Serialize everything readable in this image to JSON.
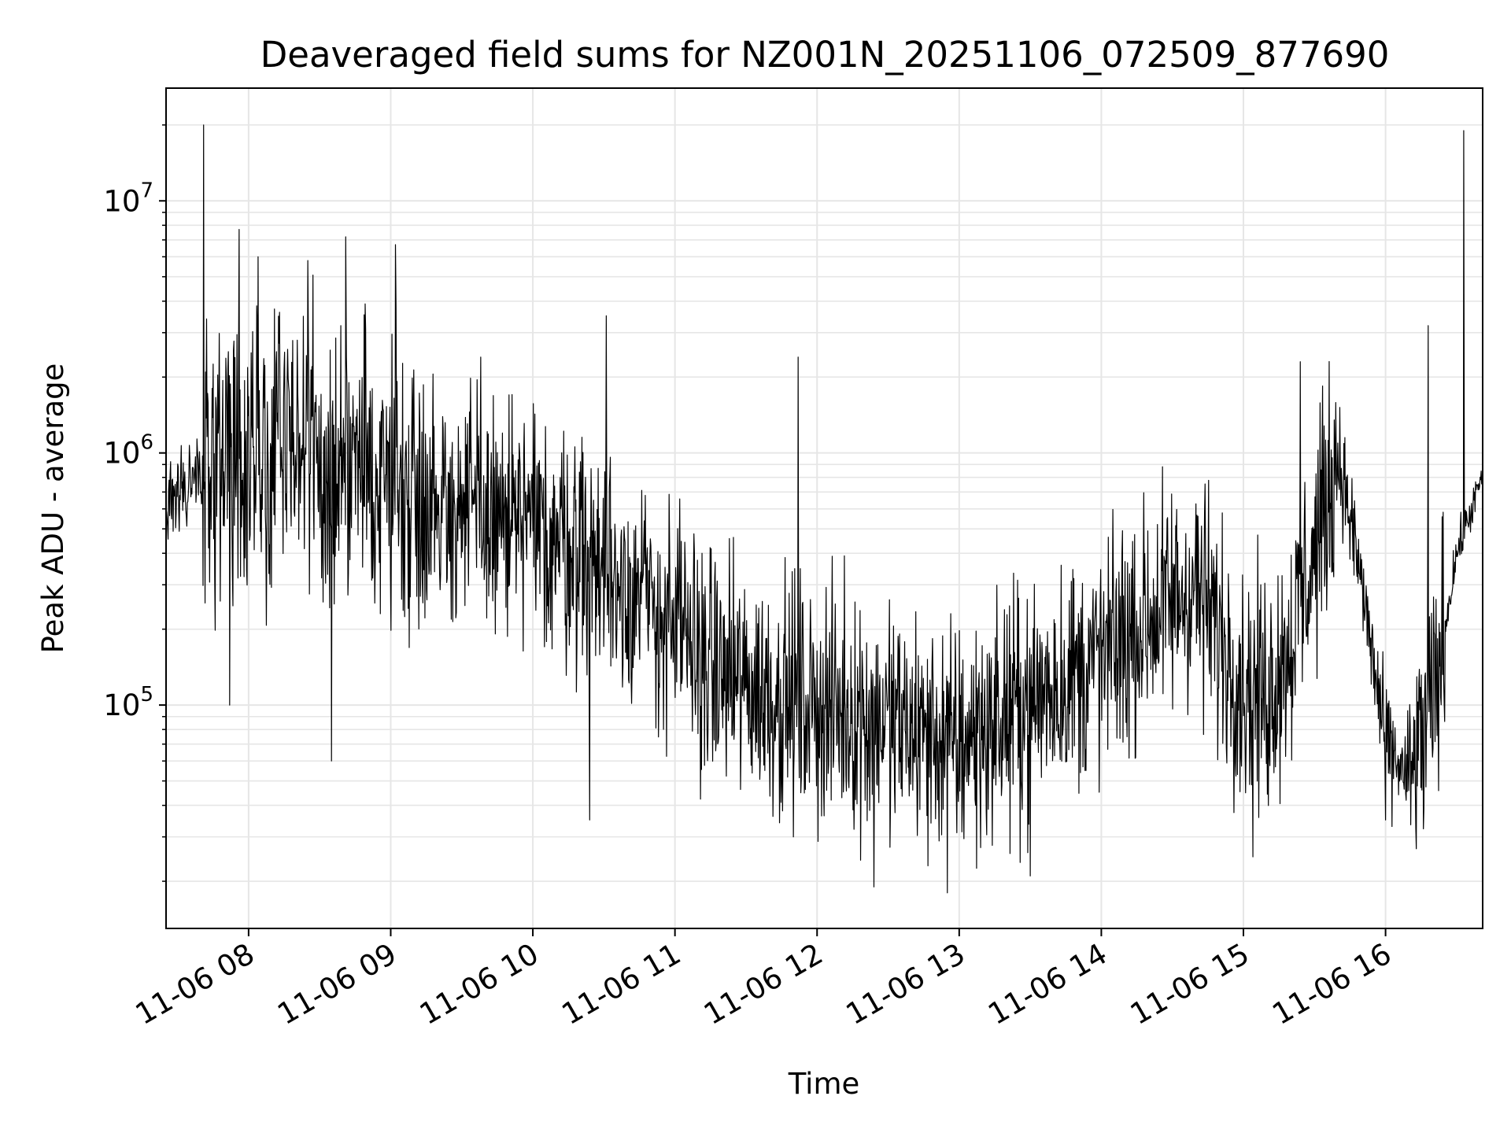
{
  "chart_data": {
    "type": "line",
    "title": "Deaveraged field sums for NZ001N_20251106_072509_877690",
    "xlabel": "Time",
    "ylabel": "Peak ADU - average",
    "yscale": "log",
    "xlim": [
      "2025-11-06T07:25:09",
      "2025-11-06T16:41:00"
    ],
    "ylim": [
      13000,
      28000000
    ],
    "grid": true,
    "x_tick_labels": [
      "11-06 08",
      "11-06 09",
      "11-06 10",
      "11-06 11",
      "11-06 12",
      "11-06 13",
      "11-06 14",
      "11-06 15",
      "11-06 16"
    ],
    "x_tick_times": [
      "2025-11-06T08:00:00",
      "2025-11-06T09:00:00",
      "2025-11-06T10:00:00",
      "2025-11-06T11:00:00",
      "2025-11-06T12:00:00",
      "2025-11-06T13:00:00",
      "2025-11-06T14:00:00",
      "2025-11-06T15:00:00",
      "2025-11-06T16:00:00"
    ],
    "y_ticks": [
      {
        "value": 100000,
        "base": "10",
        "exp": "5"
      },
      {
        "value": 1000000,
        "base": "10",
        "exp": "6"
      },
      {
        "value": 10000000,
        "base": "10",
        "exp": "7"
      }
    ],
    "line_color": "#000000",
    "series": [
      {
        "x": [
          "2025-11-06T07:25:09",
          "2025-11-06T07:40:00",
          "2025-11-06T08:00:00",
          "2025-11-06T08:20:00",
          "2025-11-06T08:40:00",
          "2025-11-06T09:00:00",
          "2025-11-06T09:20:00",
          "2025-11-06T09:40:00",
          "2025-11-06T10:00:00",
          "2025-11-06T10:20:00",
          "2025-11-06T10:40:00",
          "2025-11-06T11:00:00",
          "2025-11-06T11:20:00",
          "2025-11-06T11:40:00",
          "2025-11-06T12:00:00",
          "2025-11-06T12:20:00",
          "2025-11-06T12:40:00",
          "2025-11-06T13:00:00",
          "2025-11-06T13:20:00",
          "2025-11-06T13:40:00",
          "2025-11-06T14:00:00",
          "2025-11-06T14:20:00",
          "2025-11-06T14:40:00",
          "2025-11-06T15:00:00",
          "2025-11-06T15:10:00",
          "2025-11-06T15:20:00",
          "2025-11-06T15:30:00",
          "2025-11-06T15:40:00",
          "2025-11-06T15:50:00",
          "2025-11-06T16:00:00",
          "2025-11-06T16:10:00",
          "2025-11-06T16:20:00",
          "2025-11-06T16:30:00",
          "2025-11-06T16:41:00"
        ],
        "y": [
          600000,
          850000,
          1000000,
          1100000,
          900000,
          800000,
          650000,
          550000,
          500000,
          420000,
          300000,
          200000,
          130000,
          110000,
          100000,
          90000,
          80000,
          70000,
          90000,
          120000,
          150000,
          220000,
          300000,
          120000,
          110000,
          180000,
          400000,
          1000000,
          300000,
          70000,
          50000,
          100000,
          400000,
          800000
        ],
        "peaks": [
          {
            "x": "2025-11-06T07:41:00",
            "y": 20000000
          },
          {
            "x": "2025-11-06T07:56:00",
            "y": 7700000
          },
          {
            "x": "2025-11-06T08:04:00",
            "y": 6000000
          },
          {
            "x": "2025-11-06T08:25:00",
            "y": 5800000
          },
          {
            "x": "2025-11-06T08:41:00",
            "y": 7200000
          },
          {
            "x": "2025-11-06T09:02:00",
            "y": 6700000
          },
          {
            "x": "2025-11-06T09:38:00",
            "y": 2400000
          },
          {
            "x": "2025-11-06T10:31:00",
            "y": 3500000
          },
          {
            "x": "2025-11-06T11:52:00",
            "y": 2400000
          },
          {
            "x": "2025-11-06T15:24:00",
            "y": 2300000
          },
          {
            "x": "2025-11-06T16:18:00",
            "y": 3200000
          },
          {
            "x": "2025-11-06T16:33:00",
            "y": 19000000
          }
        ],
        "troughs": [
          {
            "x": "2025-11-06T07:52:00",
            "y": 100000
          },
          {
            "x": "2025-11-06T08:35:00",
            "y": 60000
          },
          {
            "x": "2025-11-06T10:24:00",
            "y": 35000
          },
          {
            "x": "2025-11-06T11:50:00",
            "y": 30000
          },
          {
            "x": "2025-11-06T12:24:00",
            "y": 19000
          },
          {
            "x": "2025-11-06T12:55:00",
            "y": 18000
          },
          {
            "x": "2025-11-06T13:30:00",
            "y": 21000
          },
          {
            "x": "2025-11-06T15:04:00",
            "y": 25000
          },
          {
            "x": "2025-11-06T16:00:00",
            "y": 35000
          }
        ]
      }
    ]
  }
}
